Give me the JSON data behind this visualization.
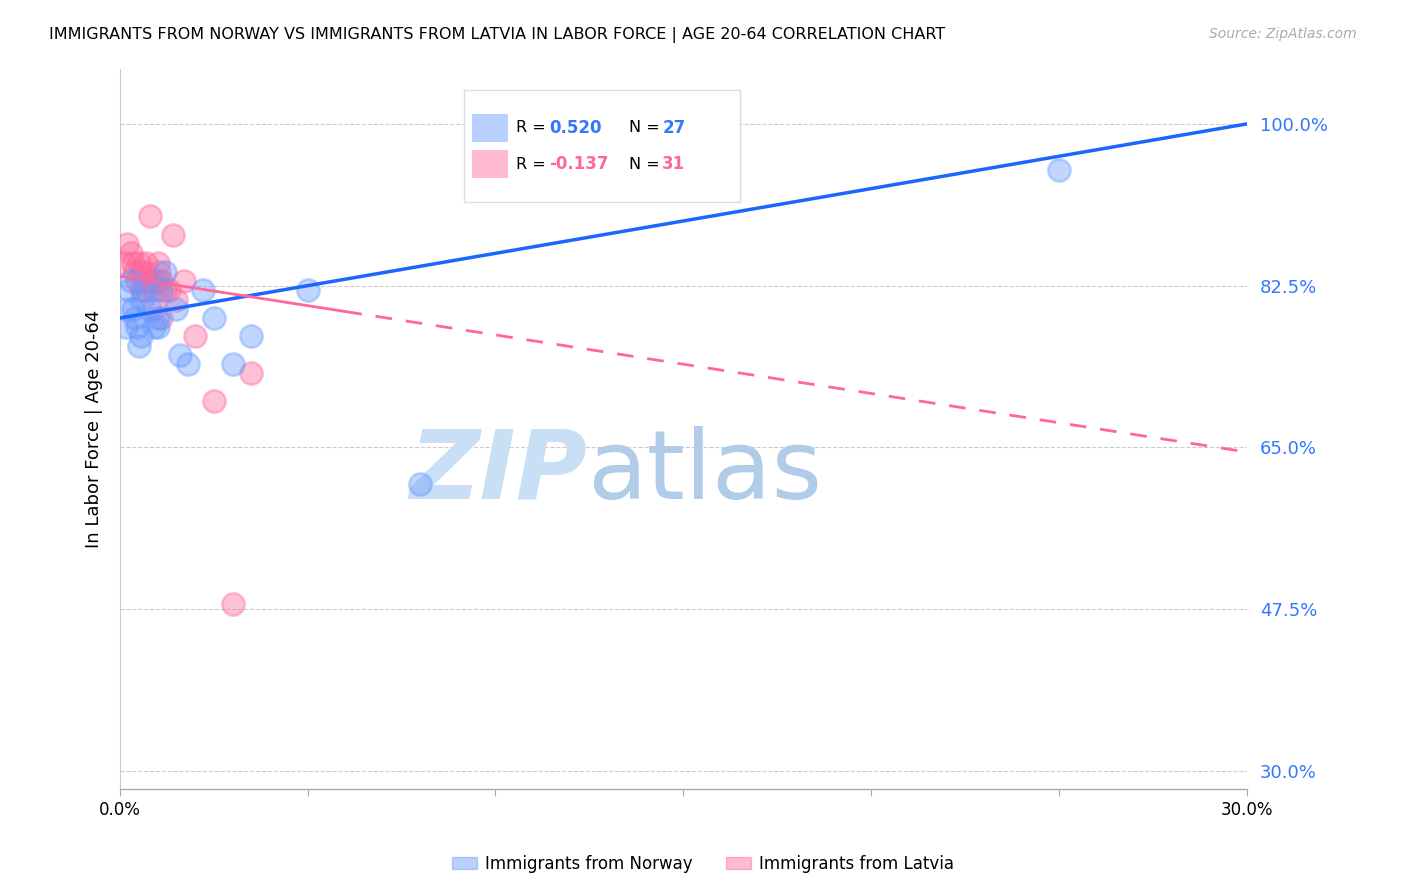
{
  "title": "IMMIGRANTS FROM NORWAY VS IMMIGRANTS FROM LATVIA IN LABOR FORCE | AGE 20-64 CORRELATION CHART",
  "source": "Source: ZipAtlas.com",
  "ylabel": "In Labor Force | Age 20-64",
  "legend_norway": "Immigrants from Norway",
  "legend_latvia": "Immigrants from Latvia",
  "r_norway": "0.520",
  "n_norway": "27",
  "r_latvia": "-0.137",
  "n_latvia": "31",
  "y_ticks": [
    30.0,
    47.5,
    65.0,
    82.5,
    100.0
  ],
  "x_lim": [
    0.0,
    30.0
  ],
  "y_lim": [
    28.0,
    106.0
  ],
  "color_norway": "#6699ff",
  "color_latvia": "#ff6699",
  "color_line_norway": "#1a66ff",
  "color_line_latvia": "#ff6699",
  "norway_line_x0": 0.0,
  "norway_line_y0": 79.0,
  "norway_line_x1": 30.0,
  "norway_line_y1": 100.0,
  "latvia_line_x0": 0.0,
  "latvia_line_y0": 83.5,
  "latvia_line_x1": 30.0,
  "latvia_line_y1": 64.5,
  "latvia_solid_end": 6.0,
  "norway_x": [
    0.15,
    0.2,
    0.25,
    0.3,
    0.35,
    0.4,
    0.45,
    0.5,
    0.55,
    0.6,
    0.7,
    0.8,
    0.9,
    1.0,
    1.1,
    1.2,
    1.5,
    1.6,
    1.8,
    2.2,
    2.5,
    3.0,
    3.5,
    5.0,
    8.0,
    25.0,
    1.0
  ],
  "norway_y": [
    78,
    80,
    82,
    83,
    80,
    79,
    78,
    76,
    77,
    81,
    82,
    80,
    78,
    79,
    82,
    84,
    80,
    75,
    74,
    82,
    79,
    74,
    77,
    82,
    61,
    95,
    78
  ],
  "latvia_x": [
    0.1,
    0.2,
    0.3,
    0.35,
    0.4,
    0.45,
    0.5,
    0.55,
    0.6,
    0.65,
    0.7,
    0.75,
    0.8,
    0.85,
    0.9,
    1.0,
    1.05,
    1.1,
    1.2,
    1.3,
    1.5,
    1.7,
    2.0,
    2.5,
    3.5,
    1.4,
    0.6,
    0.9,
    1.0,
    1.1,
    3.0
  ],
  "latvia_y": [
    85,
    87,
    86,
    85,
    84,
    83,
    85,
    84,
    82,
    84,
    85,
    83,
    90,
    83,
    82,
    85,
    84,
    83,
    82,
    82,
    81,
    83,
    77,
    70,
    73,
    88,
    82,
    80,
    83,
    79,
    48
  ],
  "watermark_zip_color": "#c8dff5",
  "watermark_atlas_color": "#b0cce8"
}
